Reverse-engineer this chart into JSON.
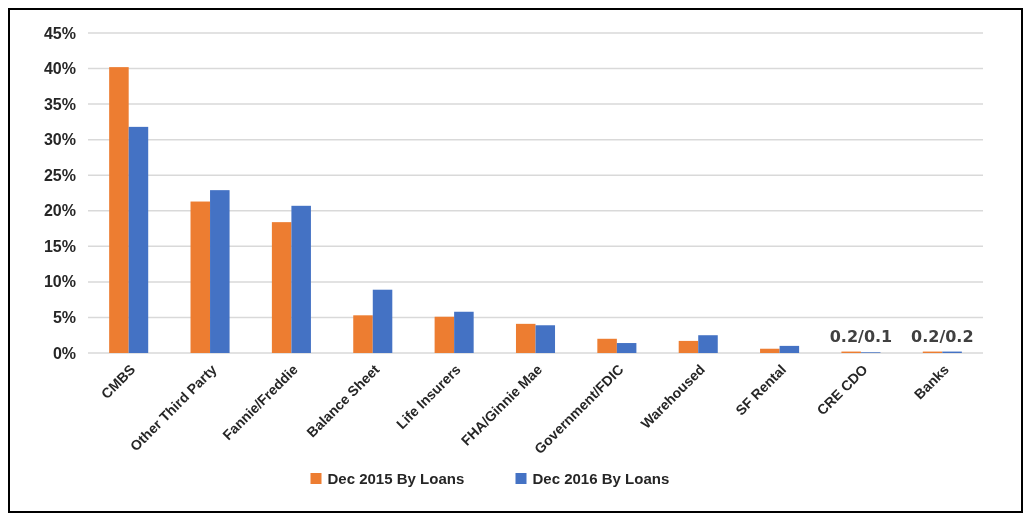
{
  "chart_data": {
    "type": "bar",
    "categories": [
      "CMBS",
      "Other Third Party",
      "Fannie/Freddie",
      "Balance Sheet",
      "Life Insurers",
      "FHA/Ginnie Mae",
      "Government/FDIC",
      "Warehoused",
      "SF Rental",
      "CRE CDO",
      "Banks"
    ],
    "series": [
      {
        "name": "Dec 2015 By Loans",
        "color": "#ed7d31",
        "values": [
          40.2,
          21.3,
          18.4,
          5.3,
          5.1,
          4.1,
          2.0,
          1.7,
          0.6,
          0.2,
          0.2
        ]
      },
      {
        "name": "Dec 2016 By Loans",
        "color": "#4472c4",
        "values": [
          31.8,
          22.9,
          20.7,
          8.9,
          5.8,
          3.9,
          1.4,
          2.5,
          1.0,
          0.1,
          0.2
        ]
      }
    ],
    "ylim": [
      0,
      45
    ],
    "yticks": [
      {
        "value": 0,
        "label": "0%"
      },
      {
        "value": 5,
        "label": "5%"
      },
      {
        "value": 10,
        "label": "10%"
      },
      {
        "value": 15,
        "label": "15%"
      },
      {
        "value": 20,
        "label": "20%"
      },
      {
        "value": 25,
        "label": "25%"
      },
      {
        "value": 30,
        "label": "30%"
      },
      {
        "value": 35,
        "label": "35%"
      },
      {
        "value": 40,
        "label": "40%"
      },
      {
        "value": 45,
        "label": "45%"
      }
    ],
    "grid": "y",
    "legend": "bottom",
    "annotations": [
      {
        "text": "0.2/0.1",
        "x": "CRE CDO",
        "y": 0.2
      },
      {
        "text": "0.2/0.2",
        "x": "Banks",
        "y": 0.2
      }
    ]
  }
}
